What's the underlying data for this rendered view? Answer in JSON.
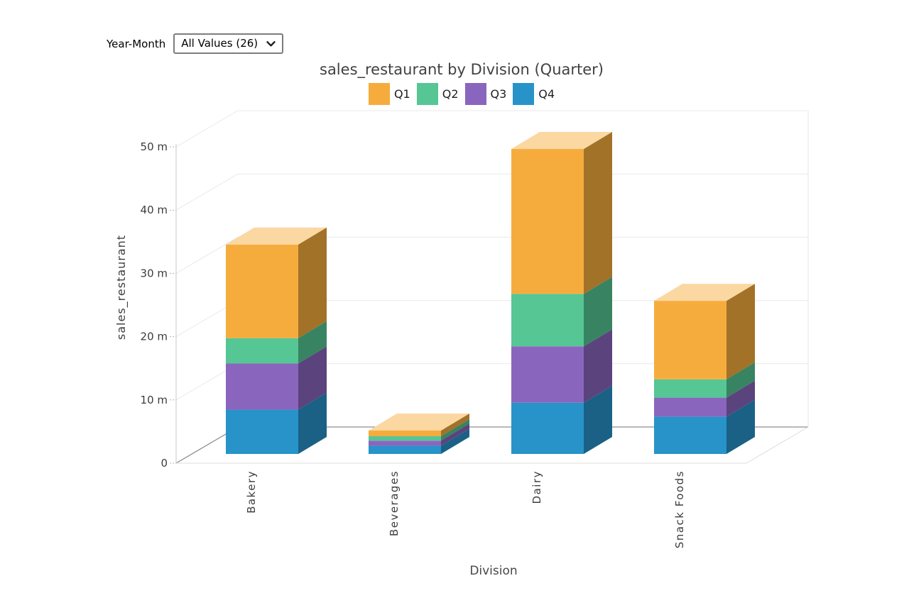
{
  "filter": {
    "label": "Year-Month",
    "value": "All Values (26)"
  },
  "header": {
    "title": "sales_restaurant by Division (Quarter)"
  },
  "axes": {
    "y_title": "sales_restaurant",
    "x_title": "Division",
    "y_ticks": [
      {
        "value": 0,
        "label": "0"
      },
      {
        "value": 10,
        "label": "10 m"
      },
      {
        "value": 20,
        "label": "20 m"
      },
      {
        "value": 30,
        "label": "30 m"
      },
      {
        "value": 40,
        "label": "40 m"
      },
      {
        "value": 50,
        "label": "50 m"
      }
    ]
  },
  "chart_data": {
    "type": "bar",
    "variant": "3d-stacked-column",
    "title": "sales_restaurant by Division (Quarter)",
    "xlabel": "Division",
    "ylabel": "sales_restaurant",
    "unit": "millions",
    "ylim": [
      0,
      50
    ],
    "grid": true,
    "legend_position": "top",
    "categories": [
      "Bakery",
      "Beverages",
      "Dairy",
      "Snack Foods"
    ],
    "series": [
      {
        "name": "Q1",
        "color": "#F6AC3D",
        "values": [
          14.8,
          0.9,
          22.9,
          12.4
        ]
      },
      {
        "name": "Q2",
        "color": "#55C694",
        "values": [
          4.0,
          0.7,
          8.3,
          2.9
        ]
      },
      {
        "name": "Q3",
        "color": "#8A65BE",
        "values": [
          7.3,
          0.8,
          8.9,
          3.0
        ]
      },
      {
        "name": "Q4",
        "color": "#2793C9",
        "values": [
          7.0,
          1.3,
          8.1,
          5.9
        ]
      }
    ],
    "stack_order_bottom_to_top": [
      "Q4",
      "Q3",
      "Q2",
      "Q1"
    ]
  }
}
